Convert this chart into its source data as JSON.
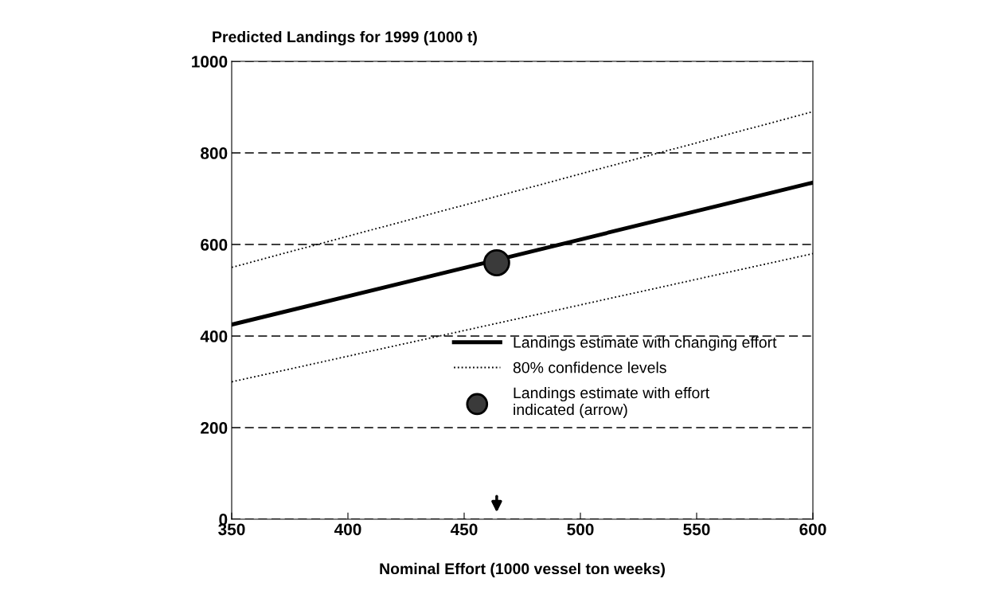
{
  "chart_data": {
    "type": "line",
    "ylabel": "Predicted Landings for 1999 (1000 t)",
    "xlabel": "Nominal Effort (1000 vessel ton weeks)",
    "xlim": [
      350,
      600
    ],
    "xticks": [
      350,
      400,
      450,
      500,
      550,
      600
    ],
    "ylim": [
      0,
      1000
    ],
    "yticks": [
      0,
      200,
      400,
      600,
      800,
      1000
    ],
    "grid": "y",
    "legend": "bottom right",
    "series": [
      {
        "name": "Landings estimate with changing effort",
        "line_style": "solid",
        "color": "#000000",
        "x": [
          350,
          600
        ],
        "values": [
          425,
          735
        ]
      },
      {
        "name": "80% confidence levels",
        "line_style": "dotted",
        "color": "#000000",
        "x": [
          350,
          600
        ],
        "values": [
          550,
          890
        ]
      },
      {
        "line_style": "dotted",
        "color": "#000000",
        "x": [
          350,
          600
        ],
        "values": [
          300,
          580
        ]
      },
      {
        "name": "Landings estimate with effort\nindicated (arrow)",
        "type": "scatter",
        "marker": "circle",
        "color": "#3a3a3a",
        "x": [
          464
        ],
        "values": [
          560
        ]
      }
    ]
  }
}
